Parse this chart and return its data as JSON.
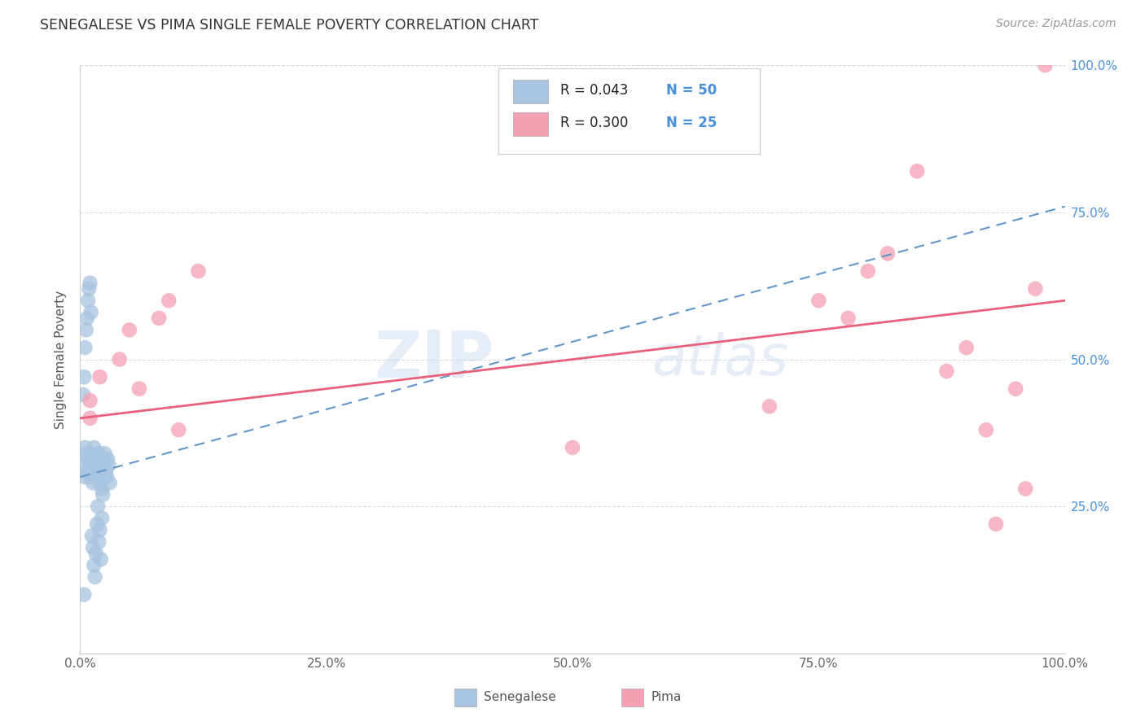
{
  "title": "SENEGALESE VS PIMA SINGLE FEMALE POVERTY CORRELATION CHART",
  "source": "Source: ZipAtlas.com",
  "ylabel": "Single Female Poverty",
  "xlim": [
    0.0,
    1.0
  ],
  "ylim": [
    0.0,
    1.0
  ],
  "xtick_labels": [
    "0.0%",
    "25.0%",
    "50.0%",
    "75.0%",
    "100.0%"
  ],
  "xtick_positions": [
    0.0,
    0.25,
    0.5,
    0.75,
    1.0
  ],
  "ytick_labels": [
    "25.0%",
    "50.0%",
    "75.0%",
    "100.0%"
  ],
  "ytick_positions": [
    0.25,
    0.5,
    0.75,
    1.0
  ],
  "senegalese_color": "#a8c4e0",
  "pima_color": "#f4a0b4",
  "trend_senegalese_color": "#6096c8",
  "trend_pima_color": "#e8607a",
  "background_color": "#ffffff",
  "grid_color": "#d4dce8",
  "watermark": "ZIPatlas",
  "senegalese_x": [
    0.003,
    0.004,
    0.005,
    0.005,
    0.006,
    0.007,
    0.008,
    0.009,
    0.01,
    0.01,
    0.011,
    0.012,
    0.013,
    0.014,
    0.015,
    0.016,
    0.017,
    0.018,
    0.019,
    0.02,
    0.021,
    0.022,
    0.023,
    0.024,
    0.025,
    0.026,
    0.027,
    0.028,
    0.029,
    0.03,
    0.003,
    0.004,
    0.005,
    0.006,
    0.007,
    0.008,
    0.009,
    0.01,
    0.011,
    0.012,
    0.013,
    0.014,
    0.015,
    0.016,
    0.017,
    0.018,
    0.019,
    0.02,
    0.021,
    0.022
  ],
  "senegalese_y": [
    0.32,
    0.1,
    0.35,
    0.3,
    0.34,
    0.31,
    0.33,
    0.34,
    0.33,
    0.3,
    0.32,
    0.31,
    0.29,
    0.35,
    0.33,
    0.32,
    0.3,
    0.31,
    0.34,
    0.29,
    0.32,
    0.28,
    0.27,
    0.33,
    0.34,
    0.31,
    0.3,
    0.33,
    0.32,
    0.29,
    0.44,
    0.47,
    0.52,
    0.55,
    0.57,
    0.6,
    0.62,
    0.63,
    0.58,
    0.2,
    0.18,
    0.15,
    0.13,
    0.17,
    0.22,
    0.25,
    0.19,
    0.21,
    0.16,
    0.23
  ],
  "pima_x": [
    0.01,
    0.01,
    0.02,
    0.04,
    0.05,
    0.06,
    0.08,
    0.09,
    0.1,
    0.12,
    0.5,
    0.7,
    0.75,
    0.78,
    0.8,
    0.82,
    0.85,
    0.88,
    0.9,
    0.92,
    0.93,
    0.95,
    0.96,
    0.97,
    0.98
  ],
  "pima_y": [
    0.4,
    0.43,
    0.47,
    0.5,
    0.55,
    0.45,
    0.57,
    0.6,
    0.38,
    0.65,
    0.35,
    0.42,
    0.6,
    0.57,
    0.65,
    0.68,
    0.82,
    0.48,
    0.52,
    0.38,
    0.22,
    0.45,
    0.28,
    0.62,
    1.0
  ]
}
